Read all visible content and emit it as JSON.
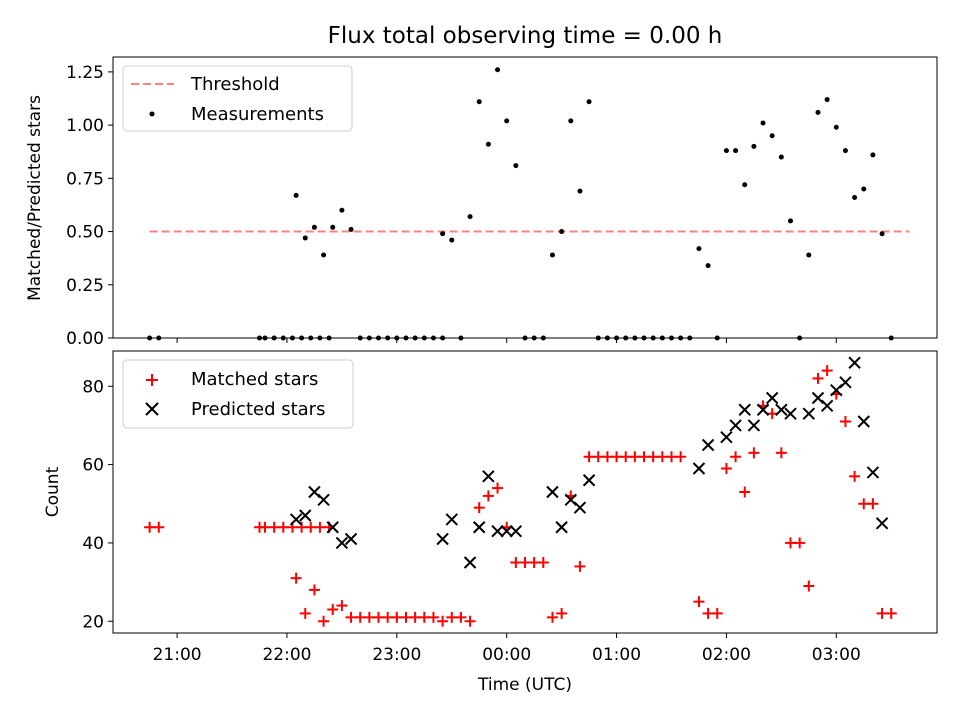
{
  "figure": {
    "title": "Flux total observing time = 0.00 h"
  },
  "chart_data": [
    {
      "type": "scatter",
      "ylabel": "Matched/Predicted stars",
      "xlabel": "",
      "xlim": [
        "20:25",
        "03:55"
      ],
      "ylim": [
        0,
        1.32
      ],
      "yticks": [
        "0.00",
        "0.25",
        "0.50",
        "0.75",
        "1.00",
        "1.25"
      ],
      "legend": {
        "placement": "top-left",
        "entries": [
          "Threshold",
          "Measurements"
        ]
      },
      "series": [
        {
          "name": "Threshold",
          "kind": "dashed-line",
          "color": "#ff8080",
          "x": [
            "20:45",
            "03:40"
          ],
          "y": [
            0.5,
            0.5
          ]
        },
        {
          "name": "Measurements",
          "kind": "dots",
          "color": "#000000",
          "points": [
            [
              "20:45",
              0
            ],
            [
              "20:50",
              0
            ],
            [
              "21:45",
              0
            ],
            [
              "21:48",
              0
            ],
            [
              "21:53",
              0
            ],
            [
              "21:58",
              0
            ],
            [
              "22:03",
              0
            ],
            [
              "22:08",
              0
            ],
            [
              "22:13",
              0
            ],
            [
              "22:18",
              0
            ],
            [
              "22:23",
              0
            ],
            [
              "22:05",
              0.67
            ],
            [
              "22:10",
              0.47
            ],
            [
              "22:15",
              0.52
            ],
            [
              "22:20",
              0.39
            ],
            [
              "22:25",
              0.52
            ],
            [
              "22:30",
              0.6
            ],
            [
              "22:35",
              0.51
            ],
            [
              "22:40",
              0
            ],
            [
              "22:45",
              0
            ],
            [
              "22:50",
              0
            ],
            [
              "22:55",
              0
            ],
            [
              "23:00",
              0
            ],
            [
              "23:05",
              0
            ],
            [
              "23:10",
              0
            ],
            [
              "23:15",
              0
            ],
            [
              "23:20",
              0
            ],
            [
              "23:25",
              0
            ],
            [
              "23:25",
              0.49
            ],
            [
              "23:30",
              0.46
            ],
            [
              "23:35",
              0
            ],
            [
              "23:40",
              0.57
            ],
            [
              "23:45",
              1.11
            ],
            [
              "23:50",
              0.91
            ],
            [
              "23:55",
              1.26
            ],
            [
              "00:00",
              1.02
            ],
            [
              "00:05",
              0.81
            ],
            [
              "00:10",
              0
            ],
            [
              "00:15",
              0
            ],
            [
              "00:20",
              0
            ],
            [
              "00:25",
              0.39
            ],
            [
              "00:30",
              0.5
            ],
            [
              "00:35",
              1.02
            ],
            [
              "00:40",
              0.69
            ],
            [
              "00:45",
              1.11
            ],
            [
              "00:50",
              0
            ],
            [
              "00:55",
              0
            ],
            [
              "01:00",
              0
            ],
            [
              "01:05",
              0
            ],
            [
              "01:10",
              0
            ],
            [
              "01:15",
              0
            ],
            [
              "01:20",
              0
            ],
            [
              "01:25",
              0
            ],
            [
              "01:30",
              0
            ],
            [
              "01:35",
              0
            ],
            [
              "01:40",
              0
            ],
            [
              "01:45",
              0.42
            ],
            [
              "01:50",
              0.34
            ],
            [
              "01:55",
              0
            ],
            [
              "02:00",
              0.88
            ],
            [
              "02:05",
              0.88
            ],
            [
              "02:10",
              0.72
            ],
            [
              "02:15",
              0.9
            ],
            [
              "02:20",
              1.01
            ],
            [
              "02:25",
              0.95
            ],
            [
              "02:30",
              0.85
            ],
            [
              "02:35",
              0.55
            ],
            [
              "02:40",
              0
            ],
            [
              "02:45",
              0.39
            ],
            [
              "02:50",
              1.06
            ],
            [
              "02:55",
              1.12
            ],
            [
              "03:00",
              0.99
            ],
            [
              "03:05",
              0.88
            ],
            [
              "03:10",
              0.66
            ],
            [
              "03:15",
              0.7
            ],
            [
              "03:20",
              0.86
            ],
            [
              "03:25",
              0.49
            ],
            [
              "03:30",
              0
            ]
          ]
        }
      ]
    },
    {
      "type": "scatter",
      "ylabel": "Count",
      "xlabel": "Time (UTC)",
      "xlim": [
        "20:25",
        "03:55"
      ],
      "ylim": [
        17,
        89
      ],
      "yticks": [
        "20",
        "40",
        "60",
        "80"
      ],
      "xticks": [
        "21:00",
        "22:00",
        "23:00",
        "00:00",
        "01:00",
        "02:00",
        "03:00"
      ],
      "legend": {
        "placement": "top-left",
        "entries": [
          "Matched stars",
          "Predicted stars"
        ]
      },
      "series": [
        {
          "name": "Matched stars",
          "marker": "plus",
          "color": "#ff0000",
          "points": [
            [
              "20:45",
              44
            ],
            [
              "20:50",
              44
            ],
            [
              "21:45",
              44
            ],
            [
              "21:48",
              44
            ],
            [
              "21:53",
              44
            ],
            [
              "21:58",
              44
            ],
            [
              "22:03",
              44
            ],
            [
              "22:08",
              44
            ],
            [
              "22:13",
              44
            ],
            [
              "22:18",
              44
            ],
            [
              "22:23",
              44
            ],
            [
              "22:05",
              31
            ],
            [
              "22:10",
              22
            ],
            [
              "22:15",
              28
            ],
            [
              "22:20",
              20
            ],
            [
              "22:25",
              23
            ],
            [
              "22:30",
              24
            ],
            [
              "22:35",
              21
            ],
            [
              "22:40",
              21
            ],
            [
              "22:45",
              21
            ],
            [
              "22:50",
              21
            ],
            [
              "22:55",
              21
            ],
            [
              "23:00",
              21
            ],
            [
              "23:05",
              21
            ],
            [
              "23:10",
              21
            ],
            [
              "23:15",
              21
            ],
            [
              "23:20",
              21
            ],
            [
              "23:25",
              20
            ],
            [
              "23:30",
              21
            ],
            [
              "23:35",
              21
            ],
            [
              "23:40",
              20
            ],
            [
              "23:45",
              49
            ],
            [
              "23:50",
              52
            ],
            [
              "23:55",
              54
            ],
            [
              "00:00",
              44
            ],
            [
              "00:05",
              35
            ],
            [
              "00:10",
              35
            ],
            [
              "00:15",
              35
            ],
            [
              "00:20",
              35
            ],
            [
              "00:25",
              21
            ],
            [
              "00:30",
              22
            ],
            [
              "00:35",
              52
            ],
            [
              "00:40",
              34
            ],
            [
              "00:45",
              62
            ],
            [
              "00:50",
              62
            ],
            [
              "00:55",
              62
            ],
            [
              "01:00",
              62
            ],
            [
              "01:05",
              62
            ],
            [
              "01:10",
              62
            ],
            [
              "01:15",
              62
            ],
            [
              "01:20",
              62
            ],
            [
              "01:25",
              62
            ],
            [
              "01:30",
              62
            ],
            [
              "01:35",
              62
            ],
            [
              "01:45",
              25
            ],
            [
              "01:50",
              22
            ],
            [
              "01:55",
              22
            ],
            [
              "02:00",
              59
            ],
            [
              "02:05",
              62
            ],
            [
              "02:10",
              53
            ],
            [
              "02:15",
              63
            ],
            [
              "02:20",
              75
            ],
            [
              "02:25",
              73
            ],
            [
              "02:30",
              63
            ],
            [
              "02:35",
              40
            ],
            [
              "02:40",
              40
            ],
            [
              "02:45",
              29
            ],
            [
              "02:50",
              82
            ],
            [
              "02:55",
              84
            ],
            [
              "03:00",
              78
            ],
            [
              "03:05",
              71
            ],
            [
              "03:10",
              57
            ],
            [
              "03:15",
              50
            ],
            [
              "03:20",
              50
            ],
            [
              "03:25",
              22
            ],
            [
              "03:30",
              22
            ]
          ]
        },
        {
          "name": "Predicted stars",
          "marker": "x",
          "color": "#000000",
          "points": [
            [
              "22:05",
              46
            ],
            [
              "22:10",
              47
            ],
            [
              "22:15",
              53
            ],
            [
              "22:20",
              51
            ],
            [
              "22:25",
              44
            ],
            [
              "22:30",
              40
            ],
            [
              "22:35",
              41
            ],
            [
              "23:25",
              41
            ],
            [
              "23:30",
              46
            ],
            [
              "23:40",
              35
            ],
            [
              "23:45",
              44
            ],
            [
              "23:50",
              57
            ],
            [
              "23:55",
              43
            ],
            [
              "00:00",
              43
            ],
            [
              "00:05",
              43
            ],
            [
              "00:25",
              53
            ],
            [
              "00:30",
              44
            ],
            [
              "00:35",
              51
            ],
            [
              "00:40",
              49
            ],
            [
              "00:45",
              56
            ],
            [
              "01:45",
              59
            ],
            [
              "01:50",
              65
            ],
            [
              "02:00",
              67
            ],
            [
              "02:05",
              70
            ],
            [
              "02:10",
              74
            ],
            [
              "02:15",
              70
            ],
            [
              "02:20",
              74
            ],
            [
              "02:25",
              77
            ],
            [
              "02:30",
              74
            ],
            [
              "02:35",
              73
            ],
            [
              "02:45",
              73
            ],
            [
              "02:50",
              77
            ],
            [
              "02:55",
              75
            ],
            [
              "03:00",
              79
            ],
            [
              "03:05",
              81
            ],
            [
              "03:10",
              86
            ],
            [
              "03:15",
              71
            ],
            [
              "03:20",
              58
            ],
            [
              "03:25",
              45
            ]
          ]
        }
      ]
    }
  ]
}
